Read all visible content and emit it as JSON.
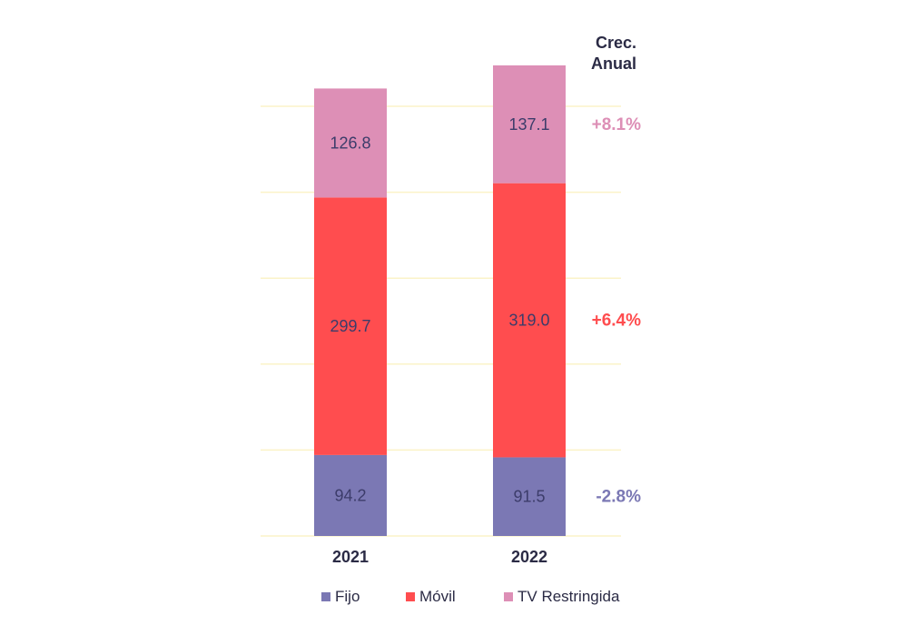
{
  "chart_data": {
    "type": "bar",
    "stacked": true,
    "categories": [
      "2021",
      "2022"
    ],
    "series": [
      {
        "name": "Fijo",
        "values": [
          94.2,
          91.5
        ],
        "labels": [
          "94.2",
          "91.5"
        ],
        "color": "#7b78b4"
      },
      {
        "name": "Móvil",
        "values": [
          299.7,
          319.0
        ],
        "labels": [
          "299.7",
          "319.0"
        ],
        "color": "#ff4d4f"
      },
      {
        "name": "TV Restringida",
        "values": [
          126.8,
          137.1
        ],
        "labels": [
          "126.8",
          "137.1"
        ],
        "color": "#dd8fb6"
      }
    ],
    "growth": {
      "header": [
        "Crec.",
        "Anual"
      ],
      "items": [
        {
          "series": "TV Restringida",
          "label": "+8.1%",
          "color": "#dd8fb6"
        },
        {
          "series": "Móvil",
          "label": "+6.4%",
          "color": "#ff4d4f"
        },
        {
          "series": "Fijo",
          "label": "-2.8%",
          "color": "#7b78b4"
        }
      ]
    },
    "ylim": [
      0,
      560
    ],
    "grid": true,
    "legend_position": "bottom"
  }
}
